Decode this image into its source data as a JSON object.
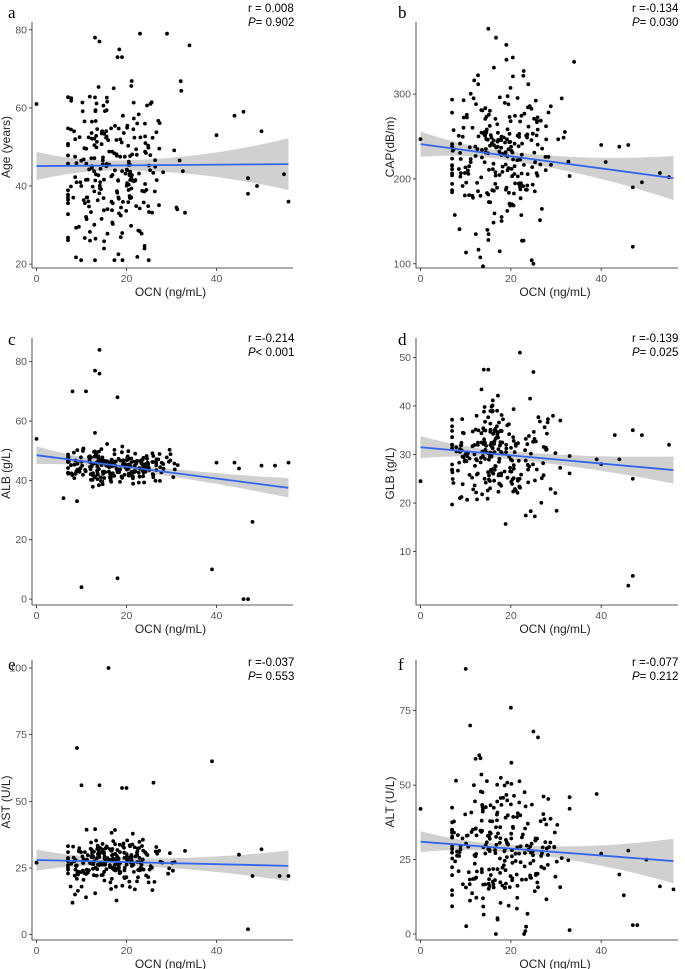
{
  "colors": {
    "points": "#000000",
    "fit_line": "#3366ee",
    "ci_band": "#c8c8c8"
  },
  "chart_data": [
    {
      "panel": "a",
      "type": "scatter",
      "xlabel": "OCN (ng/mL)",
      "ylabel": "Age (years)",
      "r_text": "r = 0.008",
      "p_label": "P",
      "p_text": "= 0.902",
      "xlim": [
        -1,
        57
      ],
      "ylim": [
        19,
        82
      ],
      "xticks": [
        0,
        20,
        40
      ],
      "yticks": [
        20,
        40,
        60,
        80
      ],
      "fit": {
        "x": [
          0,
          56
        ],
        "y": [
          45.1,
          45.6
        ],
        "ci_low_end": [
          41.5,
          39.0
        ],
        "ci_high_end": [
          48.8,
          52.3
        ]
      },
      "seed": 11,
      "n_points": 255,
      "x_center": 17,
      "x_sd": 6.5,
      "y_center": 45,
      "y_sd": 11,
      "outliers": [
        [
          0,
          61
        ],
        [
          13,
          78
        ],
        [
          14,
          77
        ],
        [
          18,
          73
        ],
        [
          19,
          73
        ],
        [
          23,
          79
        ],
        [
          29,
          79
        ],
        [
          34,
          76
        ],
        [
          40,
          53
        ],
        [
          44,
          58
        ],
        [
          46,
          59
        ],
        [
          50,
          54
        ],
        [
          47,
          38
        ],
        [
          47,
          42
        ],
        [
          49,
          40
        ],
        [
          55,
          43
        ],
        [
          56,
          36
        ],
        [
          13,
          21
        ],
        [
          15,
          24
        ],
        [
          24,
          24
        ]
      ]
    },
    {
      "panel": "b",
      "type": "scatter",
      "xlabel": "OCN (ng/mL)",
      "ylabel": "CAP(dB/m)",
      "r_text": "r =-0.134",
      "p_label": "P",
      "p_text": "= 0.030",
      "xlim": [
        -1,
        57
      ],
      "ylim": [
        95,
        385
      ],
      "xticks": [
        0,
        20,
        40
      ],
      "yticks": [
        100,
        200,
        300
      ],
      "fit": {
        "x": [
          0,
          56
        ],
        "y": [
          241,
          201
        ],
        "ci_low_end": [
          226,
          175
        ],
        "ci_high_end": [
          256,
          227
        ]
      },
      "seed": 23,
      "n_points": 255,
      "x_center": 17,
      "x_sd": 6.5,
      "y_center": 228,
      "y_sd": 45,
      "outliers": [
        [
          0,
          247
        ],
        [
          15,
          377
        ],
        [
          19,
          358
        ],
        [
          34,
          338
        ],
        [
          25,
          100
        ],
        [
          15,
          128
        ],
        [
          40,
          240
        ],
        [
          41,
          220
        ],
        [
          44,
          238
        ],
        [
          46,
          240
        ],
        [
          47,
          190
        ],
        [
          47,
          120
        ],
        [
          49,
          196
        ],
        [
          53,
          207
        ],
        [
          55,
          202
        ]
      ]
    },
    {
      "panel": "c",
      "type": "scatter",
      "xlabel": "OCN (ng/mL)",
      "ylabel": "ALB (g/L)",
      "r_text": "r =-0.214",
      "p_label": "P",
      "p_text": "< 0.001",
      "xlim": [
        -1,
        57
      ],
      "ylim": [
        -2,
        88
      ],
      "xticks": [
        0,
        20,
        40
      ],
      "yticks": [
        0,
        20,
        40,
        60,
        80
      ],
      "fit": {
        "x": [
          0,
          56
        ],
        "y": [
          48.5,
          37.5
        ],
        "ci_low_end": [
          45.5,
          34.5
        ],
        "ci_high_end": [
          51.5,
          41.0
        ]
      },
      "seed": 37,
      "n_points": 240,
      "x_center": 17,
      "x_sd": 6,
      "y_center": 45,
      "y_sd": 3,
      "outliers": [
        [
          0,
          54
        ],
        [
          8,
          70
        ],
        [
          11,
          70
        ],
        [
          14,
          84
        ],
        [
          13,
          77
        ],
        [
          14,
          76
        ],
        [
          18,
          68
        ],
        [
          13,
          56
        ],
        [
          10,
          4
        ],
        [
          18,
          7
        ],
        [
          39,
          10
        ],
        [
          46,
          0
        ],
        [
          47,
          0
        ],
        [
          48,
          26
        ],
        [
          40,
          46
        ],
        [
          44,
          46
        ],
        [
          45,
          44
        ],
        [
          50,
          45
        ],
        [
          53,
          45
        ],
        [
          56,
          46
        ],
        [
          6,
          34
        ],
        [
          9,
          33
        ]
      ]
    },
    {
      "panel": "d",
      "type": "scatter",
      "xlabel": "OCN (ng/mL)",
      "ylabel": "GLB (g/L)",
      "r_text": "r =-0.139",
      "p_label": "P",
      "p_text": "= 0.025",
      "xlim": [
        -1,
        57
      ],
      "ylim": [
        -1,
        54
      ],
      "xticks": [
        0,
        20,
        40
      ],
      "yticks": [
        10,
        20,
        30,
        40,
        50
      ],
      "fit": {
        "x": [
          0,
          56
        ],
        "y": [
          31.5,
          26.8
        ],
        "ci_low_end": [
          29.2,
          24.0
        ],
        "ci_high_end": [
          33.8,
          29.6
        ]
      },
      "seed": 41,
      "n_points": 245,
      "x_center": 17,
      "x_sd": 6.5,
      "y_center": 30,
      "y_sd": 5,
      "outliers": [
        [
          0,
          24.5
        ],
        [
          22,
          51
        ],
        [
          14,
          47.5
        ],
        [
          15,
          47.5
        ],
        [
          25,
          47
        ],
        [
          46,
          3
        ],
        [
          47,
          5
        ],
        [
          43,
          34
        ],
        [
          47,
          35
        ],
        [
          49,
          34
        ],
        [
          55,
          32
        ],
        [
          44,
          29
        ],
        [
          47,
          25
        ],
        [
          39,
          29
        ],
        [
          40,
          28
        ]
      ]
    },
    {
      "panel": "e",
      "type": "scatter",
      "xlabel": "OCN (ng/mL)",
      "ylabel": "AST (U/L)",
      "r_text": "r =-0.037",
      "p_label": "P",
      "p_text": "= 0.553",
      "xlim": [
        -1,
        57
      ],
      "ylim": [
        -2,
        103
      ],
      "xticks": [
        0,
        20,
        40
      ],
      "yticks": [
        0,
        25,
        50,
        75,
        100
      ],
      "fit": {
        "x": [
          0,
          56
        ],
        "y": [
          28.0,
          25.8
        ],
        "ci_low_end": [
          24.0,
          20.0
        ],
        "ci_high_end": [
          32.0,
          31.5
        ]
      },
      "seed": 53,
      "n_points": 240,
      "x_center": 17,
      "x_sd": 6.5,
      "y_center": 27,
      "y_sd": 5,
      "outliers": [
        [
          16,
          100
        ],
        [
          9,
          70
        ],
        [
          39,
          65
        ],
        [
          10,
          56
        ],
        [
          14,
          56
        ],
        [
          19,
          55
        ],
        [
          20,
          55
        ],
        [
          26,
          57
        ],
        [
          0,
          27
        ],
        [
          47,
          2
        ],
        [
          45,
          30
        ],
        [
          50,
          32
        ],
        [
          48,
          22
        ],
        [
          54,
          22
        ],
        [
          56,
          22
        ],
        [
          8,
          12
        ],
        [
          11,
          14
        ]
      ]
    },
    {
      "panel": "f",
      "type": "scatter",
      "xlabel": "OCN (ng/mL)",
      "ylabel": "ALT (U/L)",
      "r_text": "r =-0.077",
      "p_label": "P",
      "p_text": "= 0.212",
      "xlim": [
        -1,
        57
      ],
      "ylim": [
        -2,
        92
      ],
      "xticks": [
        0,
        20,
        40
      ],
      "yticks": [
        0,
        25,
        50,
        75
      ],
      "fit": {
        "x": [
          0,
          56
        ],
        "y": [
          31.0,
          24.5
        ],
        "ci_low_end": [
          27.5,
          17.0
        ],
        "ci_high_end": [
          34.5,
          32.0
        ]
      },
      "seed": 67,
      "n_points": 255,
      "x_center": 17,
      "x_sd": 6.5,
      "y_center": 27,
      "y_sd": 12,
      "outliers": [
        [
          10,
          89
        ],
        [
          20,
          76
        ],
        [
          11,
          70
        ],
        [
          25,
          68
        ],
        [
          26,
          66
        ],
        [
          13,
          60
        ],
        [
          0,
          42
        ],
        [
          39,
          47
        ],
        [
          40,
          27
        ],
        [
          46,
          28
        ],
        [
          47,
          3
        ],
        [
          48,
          3
        ],
        [
          50,
          25
        ],
        [
          53,
          16
        ],
        [
          56,
          15
        ],
        [
          44,
          20
        ],
        [
          45,
          13
        ]
      ]
    }
  ]
}
